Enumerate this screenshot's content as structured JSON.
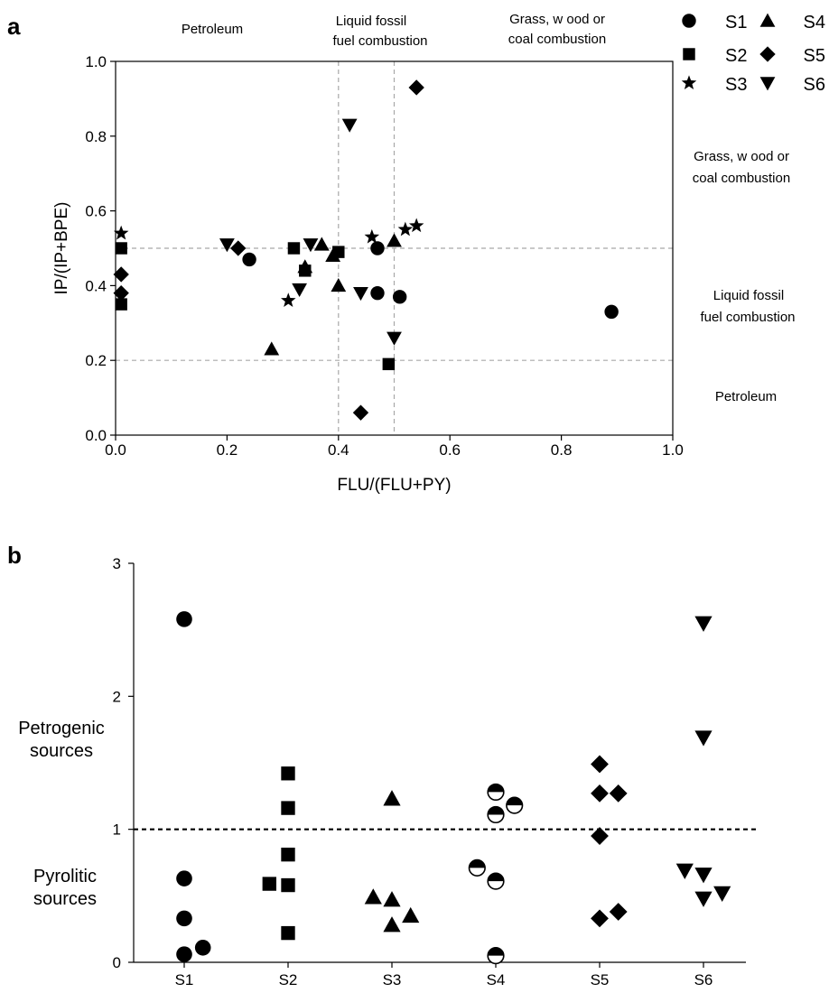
{
  "chart_data": [
    {
      "type": "scatter",
      "panel": "a",
      "xlabel": "FLU/(FLU+PY)",
      "ylabel": "IP/(IP+BPE)",
      "xlim": [
        0.0,
        1.0
      ],
      "ylim": [
        0.0,
        1.0
      ],
      "xticks": [
        "0.0",
        "0.2",
        "0.4",
        "0.6",
        "0.8",
        "1.0"
      ],
      "yticks": [
        "0.0",
        "0.2",
        "0.4",
        "0.6",
        "0.8",
        "1.0"
      ],
      "grid": false,
      "x_thresholds": [
        0.4,
        0.5
      ],
      "y_thresholds": [
        0.2,
        0.5
      ],
      "region_labels_top": [
        "Petroleum",
        "Liquid fossil",
        "fuel combustion",
        "Grass, w ood or",
        "coal combustion"
      ],
      "region_labels_right": [
        "Grass, w ood or",
        "coal combustion",
        "Liquid fossil",
        "fuel combustion",
        "Petroleum"
      ],
      "legend": {
        "placement": "top-right",
        "entries": [
          {
            "label": "S1",
            "marker": "circle"
          },
          {
            "label": "S2",
            "marker": "square"
          },
          {
            "label": "S3",
            "marker": "star"
          },
          {
            "label": "S4",
            "marker": "triangle-up"
          },
          {
            "label": "S5",
            "marker": "diamond"
          },
          {
            "label": "S6",
            "marker": "triangle-down"
          }
        ]
      },
      "series": [
        {
          "name": "S1",
          "marker": "circle",
          "points": [
            [
              0.24,
              0.47
            ],
            [
              0.47,
              0.5
            ],
            [
              0.47,
              0.38
            ],
            [
              0.51,
              0.37
            ],
            [
              0.89,
              0.33
            ]
          ]
        },
        {
          "name": "S2",
          "marker": "square",
          "points": [
            [
              0.01,
              0.5
            ],
            [
              0.01,
              0.35
            ],
            [
              0.32,
              0.5
            ],
            [
              0.34,
              0.44
            ],
            [
              0.4,
              0.49
            ],
            [
              0.49,
              0.19
            ]
          ]
        },
        {
          "name": "S3",
          "marker": "star",
          "points": [
            [
              0.01,
              0.54
            ],
            [
              0.31,
              0.36
            ],
            [
              0.46,
              0.53
            ],
            [
              0.52,
              0.55
            ],
            [
              0.54,
              0.56
            ]
          ]
        },
        {
          "name": "S4",
          "marker": "triangle-up",
          "points": [
            [
              0.28,
              0.23
            ],
            [
              0.34,
              0.45
            ],
            [
              0.37,
              0.51
            ],
            [
              0.39,
              0.48
            ],
            [
              0.4,
              0.4
            ],
            [
              0.5,
              0.52
            ]
          ]
        },
        {
          "name": "S5",
          "marker": "diamond",
          "points": [
            [
              0.01,
              0.43
            ],
            [
              0.01,
              0.38
            ],
            [
              0.22,
              0.5
            ],
            [
              0.44,
              0.06
            ],
            [
              0.54,
              0.93
            ]
          ]
        },
        {
          "name": "S6",
          "marker": "triangle-down",
          "points": [
            [
              0.2,
              0.51
            ],
            [
              0.33,
              0.39
            ],
            [
              0.35,
              0.51
            ],
            [
              0.42,
              0.83
            ],
            [
              0.44,
              0.38
            ],
            [
              0.5,
              0.26
            ]
          ]
        }
      ]
    },
    {
      "type": "scatter",
      "panel": "b",
      "categories": [
        "S1",
        "S2",
        "S3",
        "S4",
        "S5",
        "S6"
      ],
      "ylim": [
        0,
        3
      ],
      "yticks": [
        "0",
        "1",
        "2",
        "3"
      ],
      "grid": false,
      "threshold": 1,
      "side_labels": [
        {
          "lines": [
            "Petrogenic",
            "sources"
          ]
        },
        {
          "lines": [
            "Pyrolitic",
            "sources"
          ]
        }
      ],
      "series": [
        {
          "name": "S1",
          "marker": "circle",
          "points": [
            [
              0,
              2.58
            ],
            [
              0,
              0.63
            ],
            [
              0,
              0.33
            ],
            [
              0,
              0.06
            ],
            [
              0.18,
              0.11
            ]
          ]
        },
        {
          "name": "S2",
          "marker": "square",
          "points": [
            [
              0,
              1.42
            ],
            [
              0,
              1.16
            ],
            [
              0,
              0.81
            ],
            [
              0,
              0.58
            ],
            [
              -0.18,
              0.59
            ],
            [
              0,
              0.22
            ]
          ]
        },
        {
          "name": "S3",
          "marker": "triangle-up",
          "points": [
            [
              0,
              1.23
            ],
            [
              -0.18,
              0.49
            ],
            [
              0,
              0.47
            ],
            [
              0.18,
              0.35
            ],
            [
              0,
              0.28
            ]
          ]
        },
        {
          "name": "S4",
          "marker": "half-circle",
          "points": [
            [
              0,
              1.28
            ],
            [
              0,
              1.11
            ],
            [
              0.18,
              1.18
            ],
            [
              -0.18,
              0.71
            ],
            [
              0,
              0.61
            ],
            [
              0,
              0.05
            ]
          ]
        },
        {
          "name": "S5",
          "marker": "diamond",
          "points": [
            [
              0,
              1.49
            ],
            [
              0,
              1.27
            ],
            [
              0.18,
              1.27
            ],
            [
              0,
              0.95
            ],
            [
              0,
              0.33
            ],
            [
              0.18,
              0.38
            ]
          ]
        },
        {
          "name": "S6",
          "marker": "triangle-down",
          "points": [
            [
              0,
              2.55
            ],
            [
              0,
              1.69
            ],
            [
              -0.18,
              0.69
            ],
            [
              0,
              0.66
            ],
            [
              0,
              0.48
            ],
            [
              0.18,
              0.52
            ]
          ]
        }
      ]
    }
  ]
}
